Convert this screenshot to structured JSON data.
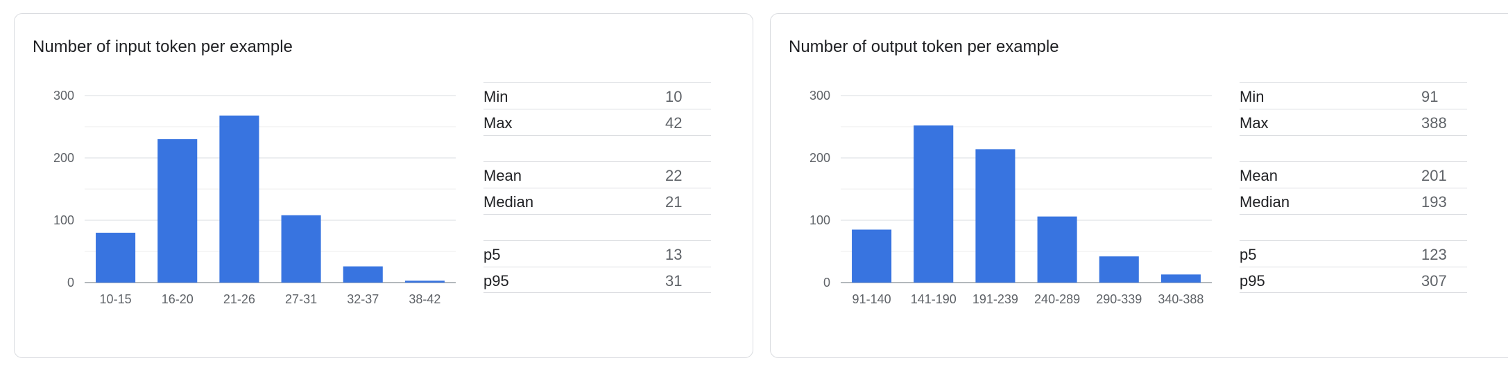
{
  "cards": [
    {
      "title": "Number of input token per example",
      "stats": {
        "min_label": "Min",
        "min": "10",
        "max_label": "Max",
        "max": "42",
        "mean_label": "Mean",
        "mean": "22",
        "median_label": "Median",
        "median": "21",
        "p5_label": "p5",
        "p5": "13",
        "p95_label": "p95",
        "p95": "31"
      }
    },
    {
      "title": "Number of output token per example",
      "stats": {
        "min_label": "Min",
        "min": "91",
        "max_label": "Max",
        "max": "388",
        "mean_label": "Mean",
        "mean": "201",
        "median_label": "Median",
        "median": "193",
        "p5_label": "p5",
        "p5": "123",
        "p95_label": "p95",
        "p95": "307"
      }
    }
  ],
  "chart_data": [
    {
      "type": "bar",
      "title": "Number of input token per example",
      "categories": [
        "10-15",
        "16-20",
        "21-26",
        "27-31",
        "32-37",
        "38-42"
      ],
      "values": [
        80,
        230,
        268,
        108,
        26,
        3
      ],
      "ylim": [
        0,
        300
      ],
      "yticks": [
        0,
        100,
        200,
        300
      ],
      "grid": true,
      "bar_color": "#3874e0"
    },
    {
      "type": "bar",
      "title": "Number of output token per example",
      "categories": [
        "91-140",
        "141-190",
        "191-239",
        "240-289",
        "290-339",
        "340-388"
      ],
      "values": [
        85,
        252,
        214,
        106,
        42,
        13
      ],
      "ylim": [
        0,
        300
      ],
      "yticks": [
        0,
        100,
        200,
        300
      ],
      "grid": true,
      "bar_color": "#3874e0"
    }
  ]
}
